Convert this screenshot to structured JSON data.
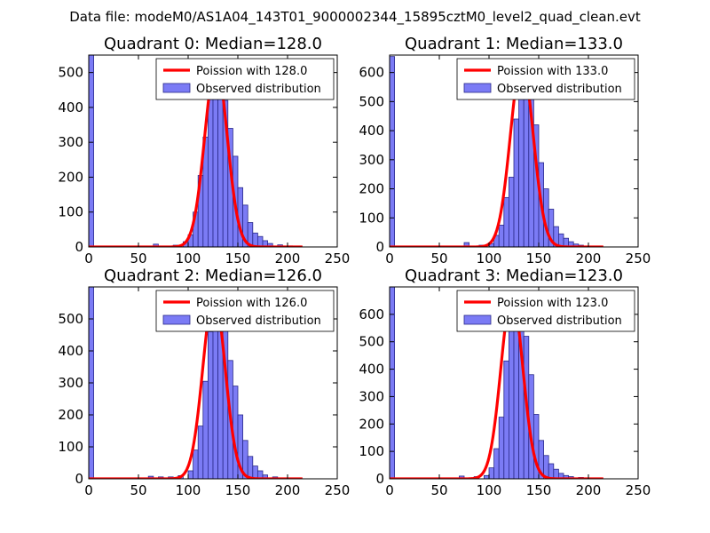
{
  "suptitle": "Data file: modeM0/AS1A04_143T01_9000002344_15895cztM0_level2_quad_clean.evt",
  "colors": {
    "bars": "#7b7bf5",
    "bar_edge": "#2a2a8a",
    "fit_line": "#ff0000"
  },
  "chart_data": [
    {
      "type": "bar",
      "title": "Quadrant 0: Median=128.0",
      "xlim": [
        0,
        250
      ],
      "ylim": [
        0,
        550
      ],
      "xticks": [
        0,
        50,
        100,
        150,
        200,
        250
      ],
      "yticks": [
        0,
        100,
        200,
        300,
        400,
        500
      ],
      "legend": [
        "Poission with 128.0",
        "Observed distribution"
      ],
      "median": 128.0,
      "mean": 128,
      "amplitude": 525,
      "sigma": 11.3,
      "bin_width": 5,
      "bins": [
        0,
        65,
        85,
        95,
        100,
        105,
        110,
        115,
        120,
        125,
        130,
        135,
        140,
        145,
        150,
        155,
        160,
        165,
        170,
        175,
        180,
        190,
        200
      ],
      "counts": [
        550,
        8,
        5,
        15,
        35,
        100,
        205,
        315,
        490,
        525,
        505,
        420,
        340,
        260,
        170,
        120,
        70,
        40,
        30,
        18,
        10,
        6,
        3
      ]
    },
    {
      "type": "bar",
      "title": "Quadrant 1: Median=133.0",
      "xlim": [
        0,
        250
      ],
      "ylim": [
        0,
        660
      ],
      "xticks": [
        0,
        50,
        100,
        150,
        200,
        250
      ],
      "yticks": [
        0,
        100,
        200,
        300,
        400,
        500,
        600
      ],
      "legend": [
        "Poission with 133.0",
        "Observed distribution"
      ],
      "median": 133.0,
      "mean": 133,
      "amplitude": 635,
      "sigma": 11.5,
      "bin_width": 5,
      "bins": [
        0,
        75,
        90,
        100,
        105,
        110,
        115,
        120,
        125,
        130,
        135,
        140,
        145,
        150,
        155,
        160,
        165,
        170,
        175,
        180,
        185,
        190,
        200
      ],
      "counts": [
        655,
        15,
        6,
        12,
        40,
        75,
        170,
        240,
        440,
        600,
        590,
        520,
        420,
        290,
        200,
        130,
        70,
        45,
        30,
        18,
        10,
        6,
        3
      ]
    },
    {
      "type": "bar",
      "title": "Quadrant 2: Median=126.0",
      "xlim": [
        0,
        250
      ],
      "ylim": [
        0,
        600
      ],
      "xticks": [
        0,
        50,
        100,
        150,
        200,
        250
      ],
      "yticks": [
        0,
        100,
        200,
        300,
        400,
        500
      ],
      "legend": [
        "Poission with 126.0",
        "Observed distribution"
      ],
      "median": 126.0,
      "mean": 126,
      "amplitude": 575,
      "sigma": 11.2,
      "bin_width": 5,
      "bins": [
        0,
        60,
        70,
        80,
        90,
        100,
        105,
        110,
        115,
        120,
        125,
        130,
        135,
        140,
        145,
        150,
        155,
        160,
        165,
        170,
        175,
        185,
        195
      ],
      "counts": [
        600,
        8,
        6,
        6,
        10,
        25,
        90,
        165,
        305,
        460,
        560,
        545,
        480,
        370,
        290,
        200,
        120,
        70,
        40,
        25,
        12,
        6,
        3
      ]
    },
    {
      "type": "bar",
      "title": "Quadrant 3: Median=123.0",
      "xlim": [
        0,
        250
      ],
      "ylim": [
        0,
        700
      ],
      "xticks": [
        0,
        50,
        100,
        150,
        200,
        250
      ],
      "yticks": [
        0,
        100,
        200,
        300,
        400,
        500,
        600
      ],
      "legend": [
        "Poission with 123.0",
        "Observed distribution"
      ],
      "median": 123.0,
      "mean": 123,
      "amplitude": 665,
      "sigma": 11.1,
      "bin_width": 5,
      "bins": [
        0,
        70,
        85,
        95,
        100,
        105,
        110,
        115,
        120,
        125,
        130,
        135,
        140,
        145,
        150,
        155,
        160,
        165,
        170,
        175,
        180,
        190,
        200
      ],
      "counts": [
        700,
        10,
        8,
        12,
        40,
        110,
        225,
        430,
        600,
        660,
        640,
        520,
        380,
        235,
        140,
        85,
        55,
        35,
        20,
        12,
        8,
        5,
        3
      ]
    }
  ]
}
